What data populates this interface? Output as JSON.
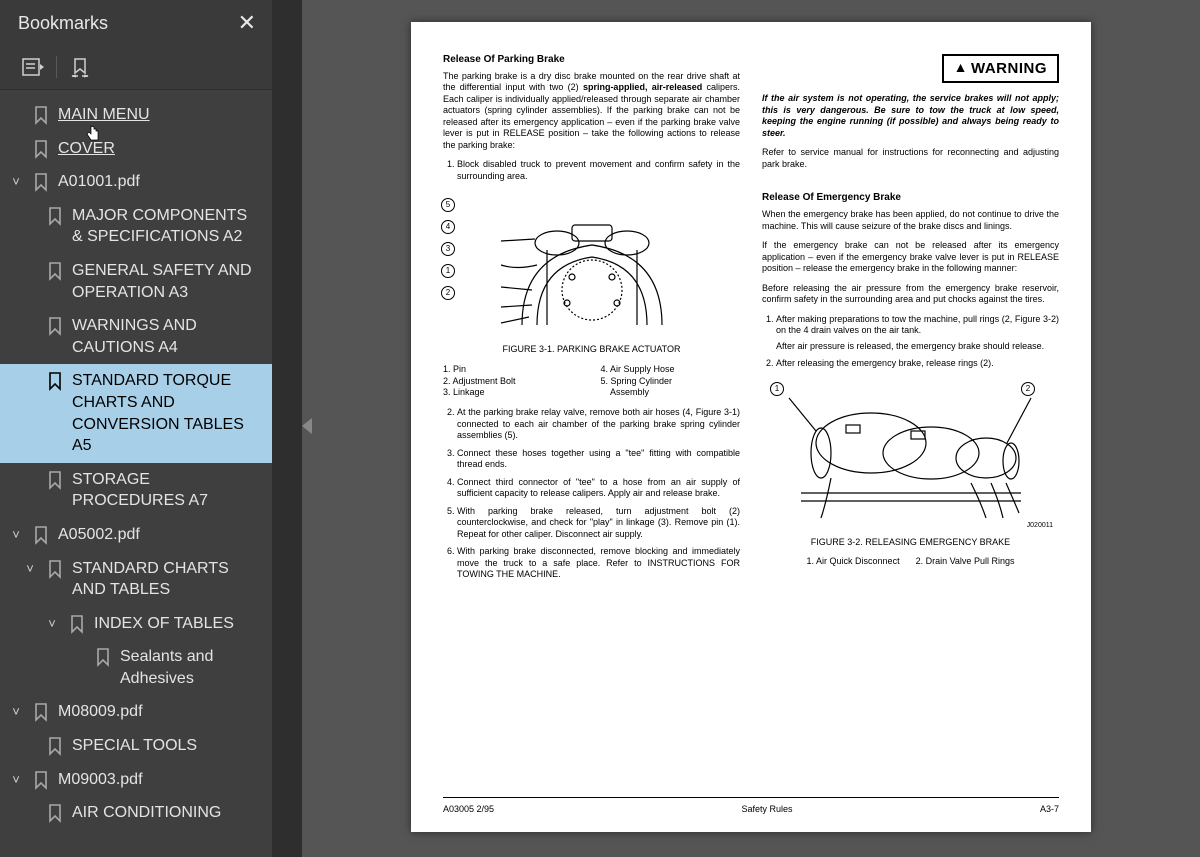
{
  "sidebar": {
    "title": "Bookmarks",
    "items": [
      {
        "lvl": 0,
        "chev": "",
        "label": "MAIN MENU",
        "underline": true,
        "cursor": true
      },
      {
        "lvl": 0,
        "chev": "",
        "label": "COVER",
        "underline": true
      },
      {
        "lvl": 0,
        "chev": "down",
        "label": "A01001.pdf"
      },
      {
        "lvl": 1,
        "chev": "",
        "label": "MAJOR COMPONENTS & SPECIFICATIONS A2"
      },
      {
        "lvl": 1,
        "chev": "",
        "label": "GENERAL SAFETY AND OPERATION A3"
      },
      {
        "lvl": 1,
        "chev": "",
        "label": "WARNINGS AND CAUTIONS A4"
      },
      {
        "lvl": 1,
        "chev": "",
        "label": "STANDARD TORQUE CHARTS AND CONVERSION TABLES A5",
        "selected": true
      },
      {
        "lvl": 1,
        "chev": "",
        "label": "STORAGE PROCEDURES A7"
      },
      {
        "lvl": 0,
        "chev": "down",
        "label": "A05002.pdf"
      },
      {
        "lvl": 1,
        "chev": "down",
        "label": "STANDARD CHARTS AND TABLES"
      },
      {
        "lvl": 2,
        "chev": "down",
        "label": "INDEX OF TABLES"
      },
      {
        "lvl": 3,
        "chev": "",
        "label": "Sealants and Adhesives"
      },
      {
        "lvl": 0,
        "chev": "down",
        "label": "M08009.pdf"
      },
      {
        "lvl": 1,
        "chev": "",
        "label": "SPECIAL TOOLS"
      },
      {
        "lvl": 0,
        "chev": "down",
        "label": "M09003.pdf"
      },
      {
        "lvl": 1,
        "chev": "",
        "label": "AIR CONDITIONING"
      }
    ]
  },
  "doc": {
    "left": {
      "h1": "Release Of Parking Brake",
      "p1a": "The parking brake is a dry disc brake mounted on the rear drive shaft at the differential input with two (2) ",
      "p1b": "spring-applied, air-released",
      "p1c": " calipers. Each caliper is individually applied/released through separate air chamber actuators (spring cylinder assemblies). If the parking brake can not be released after its emergency application – even if the parking brake valve lever is put in RELEASE position – take the following actions to release the parking brake:",
      "ol1_1": "Block disabled truck to prevent movement and confirm safety in the surrounding area.",
      "fig1_caption": "FIGURE 3-1. PARKING BRAKE ACTUATOR",
      "legend1_l1": "1. Pin",
      "legend1_l2": "2. Adjustment Bolt",
      "legend1_l3": "3. Linkage",
      "legend1_r1": "4. Air Supply Hose",
      "legend1_r2": "5. Spring Cylinder",
      "legend1_r3": "    Assembly",
      "ol2_2": "At the parking brake relay valve, remove both air hoses (4, Figure 3-1) connected to each air chamber of the parking brake spring cylinder assemblies (5).",
      "ol2_3": "Connect these hoses together using a \"tee\" fitting with compatible thread ends.",
      "ol2_4": "Connect third connector of \"tee\" to a hose from an air supply of sufficient capacity to release calipers. Apply air and release brake.",
      "ol2_5": "With parking brake released, turn adjustment bolt (2) counterclockwise, and check for \"play\" in linkage (3). Remove pin (1). Repeat for other caliper. Disconnect air supply.",
      "ol2_6": "With parking brake disconnected, remove blocking and immediately move the truck to a safe place. Refer to INSTRUCTIONS FOR TOWING THE MACHINE."
    },
    "right": {
      "warning": "WARNING",
      "warn_p": "If the air system is not operating, the service brakes will not apply; this is very dangerous. Be sure to tow the truck at low speed, keeping the engine running (if possible) and always being ready to steer.",
      "p_after": "Refer to service manual for instructions for reconnecting and adjusting park brake.",
      "h2": "Release Of Emergency Brake",
      "p2": "When the emergency brake has been applied, do not continue to drive the machine. This will cause seizure of the brake discs and linings.",
      "p3": "If the emergency brake can not be released after its emergency application – even if the emergency brake valve lever is put in RELEASE position – release the emergency brake in the following manner:",
      "p4": "Before releasing the air pressure from the emergency brake reservoir, confirm safety in the surrounding area and put chocks against the tires.",
      "ol_1": "After making preparations to tow the machine, pull rings (2, Figure 3-2) on the 4 drain valves on the air tank.",
      "ol_1b": "After air pressure is released, the emergency brake should release.",
      "ol_2": "After releasing the emergency brake, release rings (2).",
      "fig2_caption": "FIGURE 3-2. RELEASING EMERGENCY BRAKE",
      "legend2_1": "1. Air Quick Disconnect",
      "legend2_2": "2. Drain Valve Pull Rings",
      "fig2_label": "J020011"
    },
    "footer": {
      "left": "A03005 2/95",
      "center": "Safety Rules",
      "right": "A3-7"
    }
  },
  "colors": {
    "sidebar_bg": "#3f3f3f",
    "sidebar_header_bg": "#3a3a3a",
    "selected_bg": "#a7cfe8",
    "page_bg": "#ffffff",
    "gutter_bg": "#2e2e2e",
    "body_bg": "#555555"
  }
}
